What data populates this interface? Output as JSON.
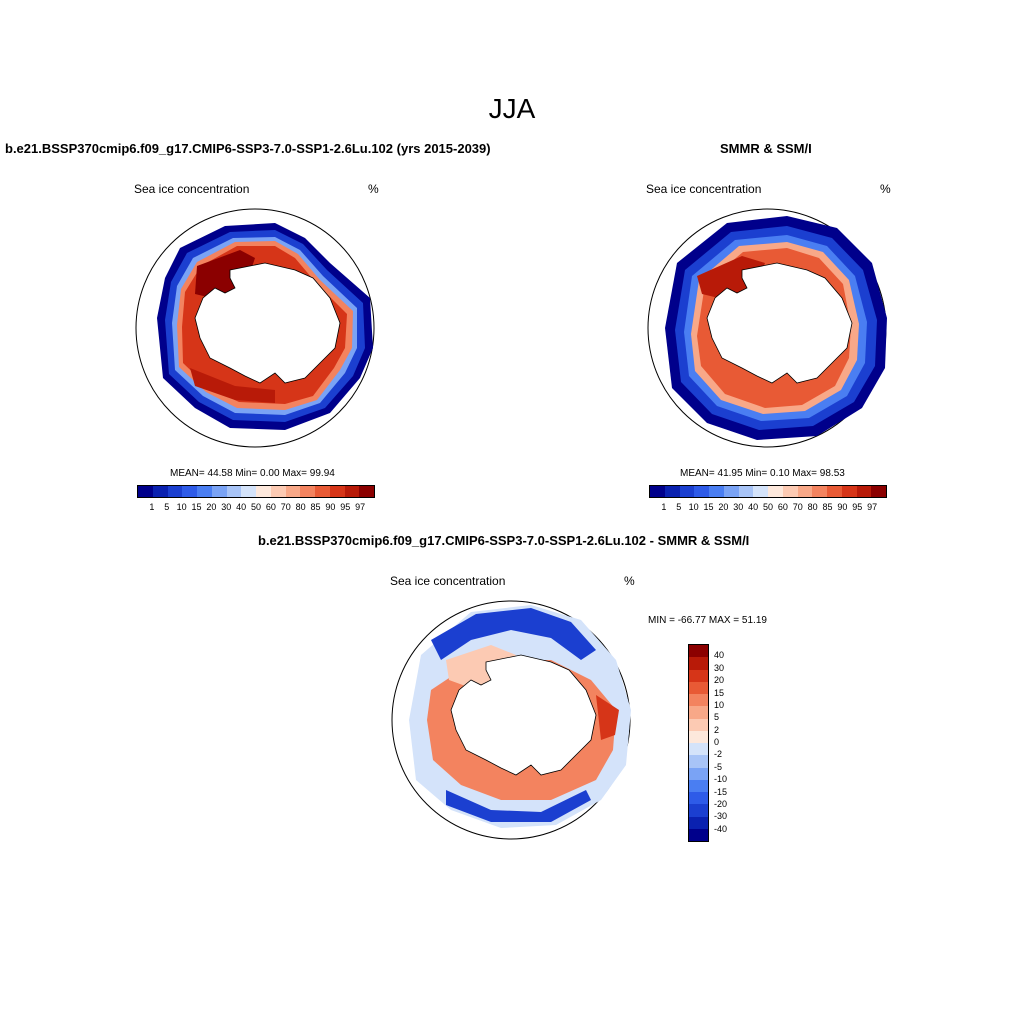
{
  "figure": {
    "title": "JJA"
  },
  "panel_model": {
    "title": "b.e21.BSSP370cmip6.f09_g17.CMIP6-SSP3-7.0-SSP1-2.6Lu.102 (yrs 2015-2039)",
    "left_label": "Sea ice concentration",
    "right_label": "%",
    "stats": "MEAN=  44.58  Min=   0.00  Max=  99.94"
  },
  "panel_obs": {
    "title": "SMMR & SSM/I",
    "left_label": "Sea ice concentration",
    "right_label": "%",
    "stats": "MEAN=  41.95  Min=   0.10  Max=  98.53"
  },
  "panel_diff": {
    "title": "b.e21.BSSP370cmip6.f09_g17.CMIP6-SSP3-7.0-SSP1-2.6Lu.102 - SMMR & SSM/I",
    "left_label": "Sea ice concentration",
    "right_label": "%",
    "stats": "MIN = -66.77 MAX =  51.19"
  },
  "colorbar_conc": {
    "labels": [
      "1",
      "5",
      "10",
      "15",
      "20",
      "30",
      "40",
      "50",
      "60",
      "70",
      "80",
      "85",
      "90",
      "95",
      "97"
    ],
    "colors": [
      "#00008b",
      "#0a21b0",
      "#1b3fd0",
      "#2e5be8",
      "#4a7ef2",
      "#7aa3f5",
      "#a8c4f7",
      "#d4e3fa",
      "#fde8dc",
      "#fccab3",
      "#f8a888",
      "#f3835f",
      "#e85a35",
      "#d63518",
      "#b81a08",
      "#8b0000"
    ]
  },
  "colorbar_diff": {
    "labels": [
      "40",
      "30",
      "20",
      "15",
      "10",
      "5",
      "2",
      "0",
      "-2",
      "-5",
      "-10",
      "-15",
      "-20",
      "-30",
      "-40"
    ],
    "colors": [
      "#8b0000",
      "#b81a08",
      "#d63518",
      "#e85a35",
      "#f3835f",
      "#f8a888",
      "#fccab3",
      "#fde8dc",
      "#d4e3fa",
      "#a8c4f7",
      "#7aa3f5",
      "#4a7ef2",
      "#2e5be8",
      "#1b3fd0",
      "#0a21b0",
      "#00008b"
    ]
  }
}
